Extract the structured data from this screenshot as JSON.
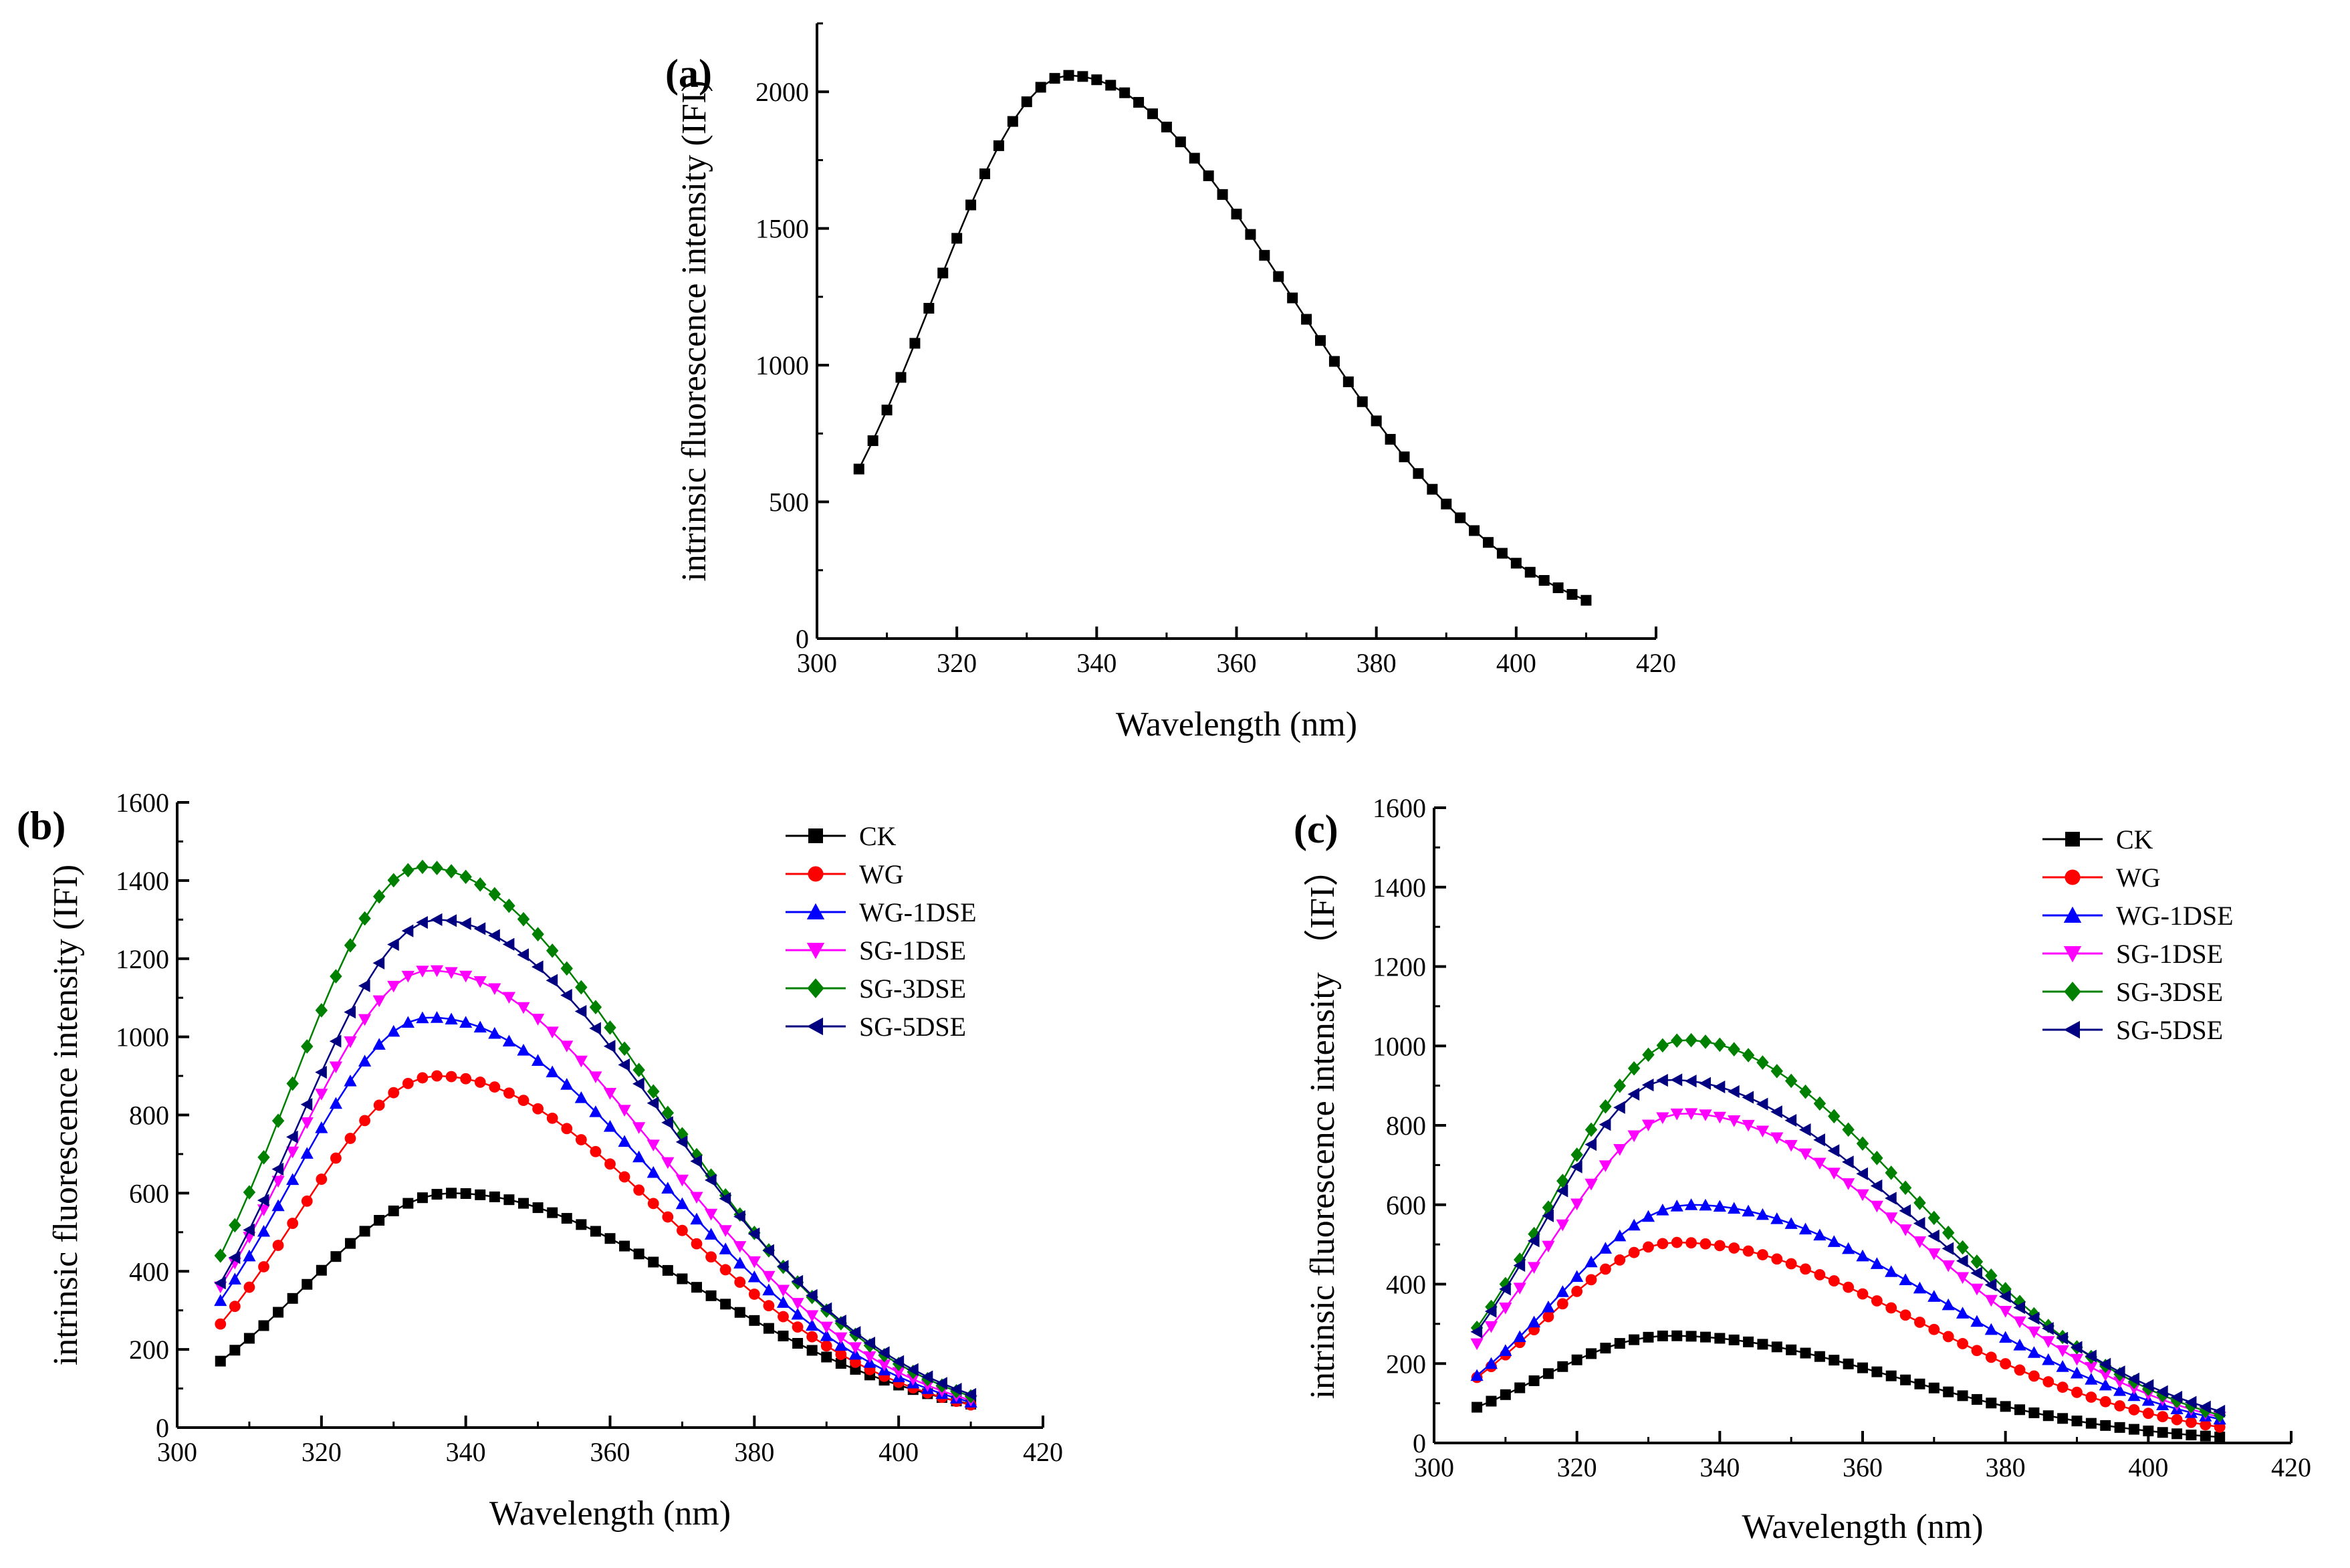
{
  "chart_data": [
    {
      "panel_label": "(a)",
      "type": "line",
      "xlabel": "Wavelength (nm)",
      "ylabel": "intrinsic fluorescence intensity (IFI)",
      "xlim": [
        300,
        420
      ],
      "ylim": [
        0,
        2250
      ],
      "xticks": [
        300,
        320,
        340,
        360,
        380,
        400,
        420
      ],
      "yticks": [
        0,
        500,
        1000,
        1500,
        2000
      ],
      "x_range": [
        306,
        410,
        2
      ],
      "series": [
        {
          "name": "",
          "color": "#000000",
          "marker": "square",
          "peak_x": 336,
          "peak_y": 2060,
          "start_y": 620,
          "end_y": 140
        }
      ]
    },
    {
      "panel_label": "(b)",
      "type": "line",
      "xlabel": "Wavelength (nm)",
      "ylabel": "intrinsic fluorescence intensity (IFI)",
      "xlim": [
        300,
        420
      ],
      "ylim": [
        0,
        1600
      ],
      "xticks": [
        300,
        320,
        340,
        360,
        380,
        400,
        420
      ],
      "yticks": [
        0,
        200,
        400,
        600,
        800,
        1000,
        1200,
        1400,
        1600
      ],
      "x_range": [
        306,
        410,
        2
      ],
      "legend_position": "top-right",
      "series": [
        {
          "name": "CK",
          "color": "#000000",
          "marker": "square",
          "peak_x": 338,
          "peak_y": 600,
          "start_y": 170,
          "end_y": 60
        },
        {
          "name": "WG",
          "color": "#ff0000",
          "marker": "circle",
          "peak_x": 336,
          "peak_y": 900,
          "start_y": 265,
          "end_y": 58
        },
        {
          "name": "WG-1DSE",
          "color": "#0000ff",
          "marker": "triangle-up",
          "peak_x": 335,
          "peak_y": 1050,
          "start_y": 325,
          "end_y": 65
        },
        {
          "name": "SG-1DSE",
          "color": "#ff00ff",
          "marker": "triangle-down",
          "peak_x": 335,
          "peak_y": 1170,
          "start_y": 360,
          "end_y": 70
        },
        {
          "name": "SG-3DSE",
          "color": "#008000",
          "marker": "diamond",
          "peak_x": 334,
          "peak_y": 1435,
          "start_y": 440,
          "end_y": 80
        },
        {
          "name": "SG-5DSE",
          "color": "#000080",
          "marker": "triangle-left",
          "peak_x": 336,
          "peak_y": 1300,
          "start_y": 370,
          "end_y": 85
        }
      ]
    },
    {
      "panel_label": "(c)",
      "type": "line",
      "xlabel": "Wavelength (nm)",
      "ylabel": "intrinsic fluorescence intensity （IFI）",
      "xlim": [
        300,
        420
      ],
      "ylim": [
        0,
        1600
      ],
      "xticks": [
        300,
        320,
        340,
        360,
        380,
        400,
        420
      ],
      "yticks": [
        0,
        200,
        400,
        600,
        800,
        1000,
        1200,
        1400,
        1600
      ],
      "x_range": [
        306,
        410,
        2
      ],
      "legend_position": "top-right",
      "series": [
        {
          "name": "CK",
          "color": "#000000",
          "marker": "square",
          "peak_x": 333,
          "peak_y": 270,
          "start_y": 90,
          "end_y": 15
        },
        {
          "name": "WG",
          "color": "#ff0000",
          "marker": "circle",
          "peak_x": 334,
          "peak_y": 505,
          "start_y": 165,
          "end_y": 40
        },
        {
          "name": "WG-1DSE",
          "color": "#0000ff",
          "marker": "triangle-up",
          "peak_x": 336,
          "peak_y": 600,
          "start_y": 170,
          "end_y": 60
        },
        {
          "name": "SG-1DSE",
          "color": "#ff00ff",
          "marker": "triangle-down",
          "peak_x": 335,
          "peak_y": 830,
          "start_y": 250,
          "end_y": 65
        },
        {
          "name": "SG-3DSE",
          "color": "#008000",
          "marker": "diamond",
          "peak_x": 335,
          "peak_y": 1015,
          "start_y": 290,
          "end_y": 70
        },
        {
          "name": "SG-5DSE",
          "color": "#000080",
          "marker": "triangle-left",
          "peak_x": 333,
          "peak_y": 915,
          "start_y": 280,
          "end_y": 80
        }
      ]
    }
  ]
}
